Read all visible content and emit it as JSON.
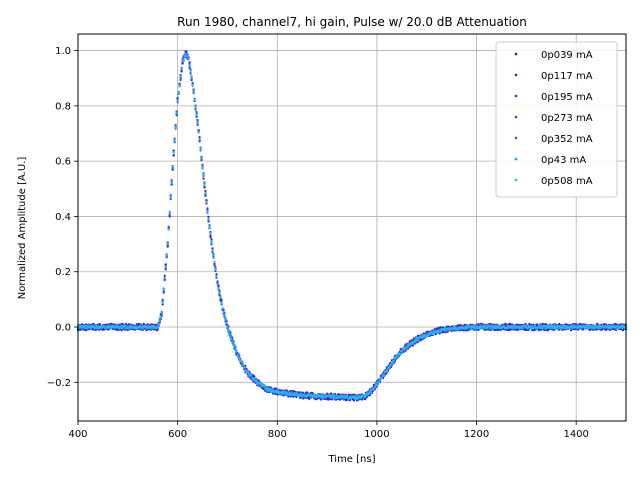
{
  "chart_data": {
    "type": "scatter",
    "title": "Run 1980, channel7, hi gain, Pulse w/ 20.0 dB Attenuation",
    "xlabel": "Time [ns]",
    "ylabel": "Normalized Amplitude [A.U.]",
    "xlim": [
      400,
      1500
    ],
    "ylim": [
      -0.34,
      1.06
    ],
    "xticks": [
      400,
      600,
      800,
      1000,
      1200,
      1400
    ],
    "yticks": [
      -0.2,
      0.0,
      0.2,
      0.4,
      0.6,
      0.8,
      1.0
    ],
    "xtick_labels": [
      "400",
      "600",
      "800",
      "1000",
      "1200",
      "1400"
    ],
    "ytick_labels": [
      "−0.2",
      "0.0",
      "0.2",
      "0.4",
      "0.6",
      "0.8",
      "1.0"
    ],
    "grid": true,
    "legend_position": "top-right",
    "pulse_shape": {
      "x": [
        400,
        560,
        568,
        580,
        590,
        600,
        610,
        616,
        622,
        630,
        640,
        650,
        660,
        670,
        680,
        690,
        700,
        720,
        740,
        760,
        780,
        800,
        840,
        880,
        920,
        960,
        975,
        990,
        1000,
        1020,
        1040,
        1060,
        1080,
        1100,
        1120,
        1140,
        1160,
        1180,
        1200,
        1300,
        1400,
        1500
      ],
      "y": [
        0.0,
        0.0,
        0.05,
        0.3,
        0.58,
        0.82,
        0.96,
        0.99,
        0.97,
        0.88,
        0.74,
        0.58,
        0.42,
        0.28,
        0.16,
        0.07,
        0.0,
        -0.1,
        -0.165,
        -0.2,
        -0.225,
        -0.235,
        -0.245,
        -0.25,
        -0.253,
        -0.255,
        -0.25,
        -0.23,
        -0.205,
        -0.155,
        -0.105,
        -0.07,
        -0.045,
        -0.028,
        -0.015,
        -0.008,
        -0.004,
        -0.002,
        0.0,
        0.0,
        0.0,
        0.0
      ]
    },
    "series": [
      {
        "name": "0p039 mA",
        "color": "#1f1fb4",
        "noise": 0.012
      },
      {
        "name": "0p117 mA",
        "color": "#2020c8",
        "noise": 0.011
      },
      {
        "name": "0p195 mA",
        "color": "#3a2ad8",
        "noise": 0.01
      },
      {
        "name": "0p273 mA",
        "color": "#4b35d8",
        "noise": 0.009
      },
      {
        "name": "0p352 mA",
        "color": "#6a3fe0",
        "noise": 0.008
      },
      {
        "name": "0p43 mA",
        "color": "#1f9fe0",
        "noise": 0.006
      },
      {
        "name": "0p508 mA",
        "color": "#22b8f0",
        "noise": 0.005
      }
    ]
  }
}
